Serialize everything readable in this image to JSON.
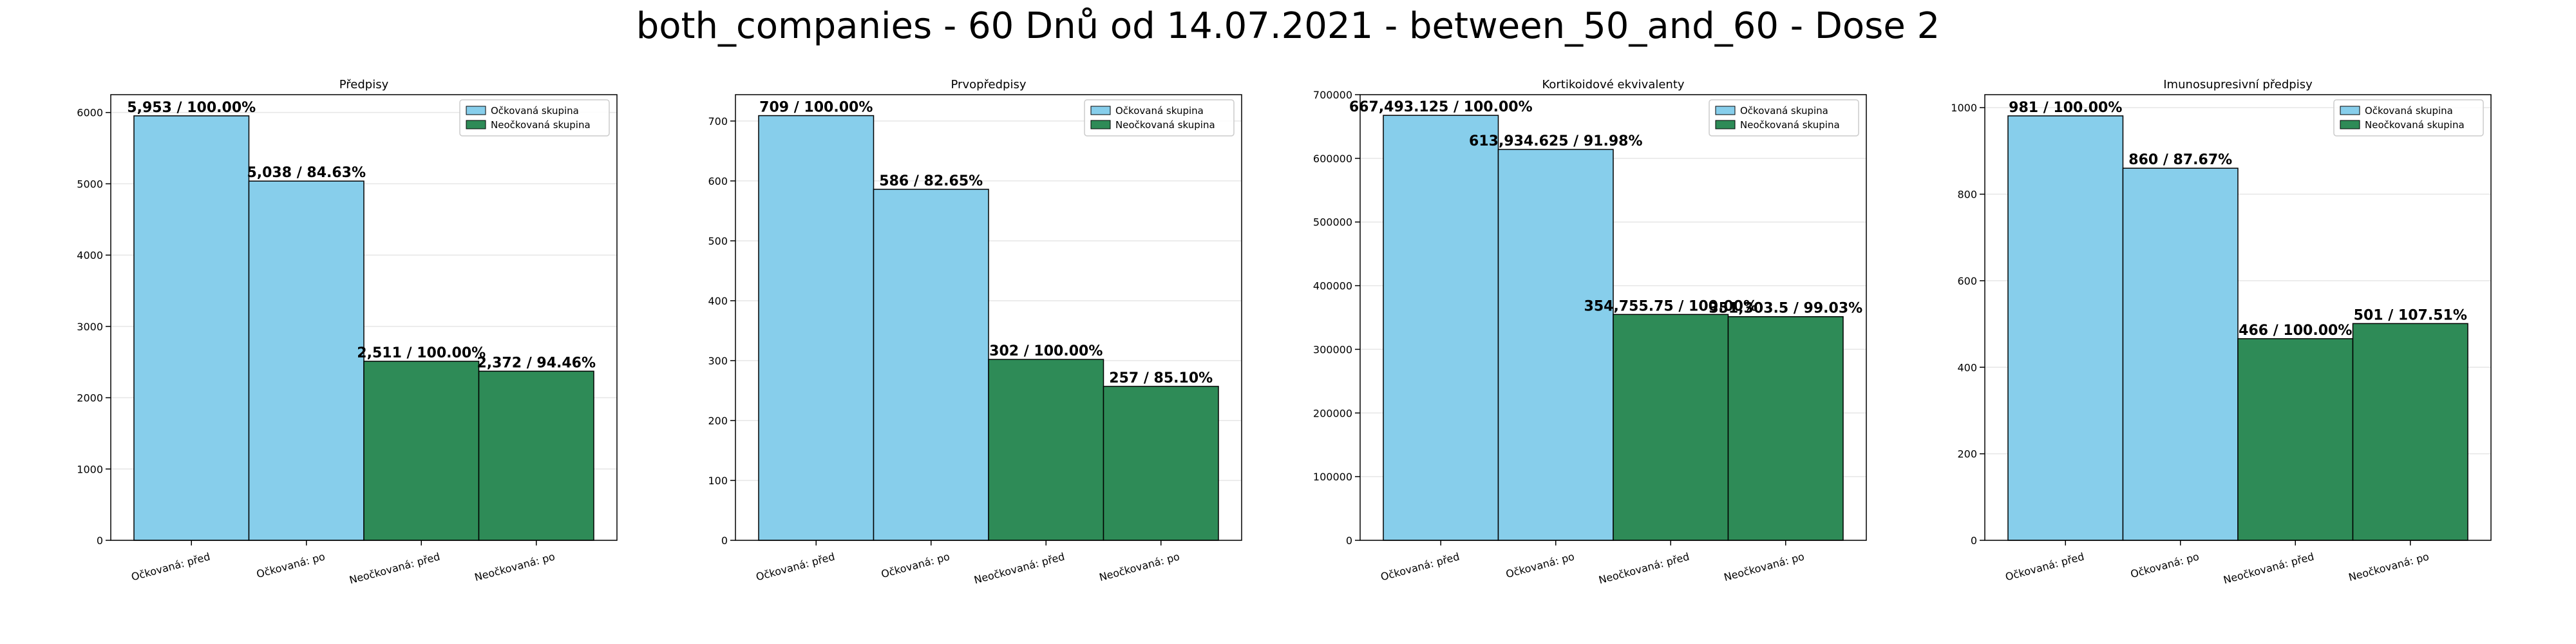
{
  "figure_title": "both_companies - 60 Dnů od 14.07.2021 - between_50_and_60 - Dose 2",
  "colors": {
    "vaccinated": "#87CEEB",
    "unvaccinated": "#2E8B57",
    "edge": "#000000"
  },
  "chart_data": [
    {
      "type": "bar",
      "title": "Předpisy",
      "categories": [
        "Očkovaná: před",
        "Očkovaná: po",
        "Neočkovaná: před",
        "Neočkovaná: po"
      ],
      "values": [
        5953,
        5038,
        2511,
        2372
      ],
      "data_labels": [
        "5,953 / 100.00%",
        "5,038 / 84.63%",
        "2,511 / 100.00%",
        "2,372 / 94.46%"
      ],
      "groups": [
        "vaccinated",
        "vaccinated",
        "unvaccinated",
        "unvaccinated"
      ],
      "legend": [
        "Očkovaná skupina",
        "Neočkovaná skupina"
      ],
      "legend_position": "top-right",
      "yticks": [
        0,
        1000,
        2000,
        3000,
        4000,
        5000,
        6000
      ],
      "ytick_labels": [
        "0",
        "1000",
        "2000",
        "3000",
        "4000",
        "5000",
        "6000"
      ],
      "ylim": [
        0,
        6250
      ],
      "grid": true
    },
    {
      "type": "bar",
      "title": "Prvopředpisy",
      "categories": [
        "Očkovaná: před",
        "Očkovaná: po",
        "Neočkovaná: před",
        "Neočkovaná: po"
      ],
      "values": [
        709,
        586,
        302,
        257
      ],
      "data_labels": [
        "709 / 100.00%",
        "586 / 82.65%",
        "302 / 100.00%",
        "257 / 85.10%"
      ],
      "groups": [
        "vaccinated",
        "vaccinated",
        "unvaccinated",
        "unvaccinated"
      ],
      "legend": [
        "Očkovaná skupina",
        "Neočkovaná skupina"
      ],
      "legend_position": "top-right",
      "yticks": [
        0,
        100,
        200,
        300,
        400,
        500,
        600,
        700
      ],
      "ytick_labels": [
        "0",
        "100",
        "200",
        "300",
        "400",
        "500",
        "600",
        "700"
      ],
      "ylim": [
        0,
        744
      ],
      "grid": true
    },
    {
      "type": "bar",
      "title": "Kortikoidové ekvivalenty",
      "categories": [
        "Očkovaná: před",
        "Očkovaná: po",
        "Neočkovaná: před",
        "Neočkovaná: po"
      ],
      "values": [
        667493.125,
        613934.625,
        354755.75,
        351303.5
      ],
      "data_labels": [
        "667,493.125 / 100.00%",
        "613,934.625 / 91.98%",
        "354,755.75 / 100.00%",
        "351,303.5 / 99.03%"
      ],
      "groups": [
        "vaccinated",
        "vaccinated",
        "unvaccinated",
        "unvaccinated"
      ],
      "legend": [
        "Očkovaná skupina",
        "Neočkovaná skupina"
      ],
      "legend_position": "top-right",
      "yticks": [
        0,
        100000,
        200000,
        300000,
        400000,
        500000,
        600000,
        700000
      ],
      "ytick_labels": [
        "0",
        "100000",
        "200000",
        "300000",
        "400000",
        "500000",
        "600000",
        "700000"
      ],
      "ylim": [
        0,
        700000
      ],
      "grid": true
    },
    {
      "type": "bar",
      "title": "Imunosupresivní předpisy",
      "categories": [
        "Očkovaná: před",
        "Očkovaná: po",
        "Neočkovaná: před",
        "Neočkovaná: po"
      ],
      "values": [
        981,
        860,
        466,
        501
      ],
      "data_labels": [
        "981 / 100.00%",
        "860 / 87.67%",
        "466 / 100.00%",
        "501 / 107.51%"
      ],
      "groups": [
        "vaccinated",
        "vaccinated",
        "unvaccinated",
        "unvaccinated"
      ],
      "legend": [
        "Očkovaná skupina",
        "Neočkovaná skupina"
      ],
      "legend_position": "top-right",
      "yticks": [
        0,
        200,
        400,
        600,
        800,
        1000
      ],
      "ytick_labels": [
        "0",
        "200",
        "400",
        "600",
        "800",
        "1000"
      ],
      "ylim": [
        0,
        1030
      ],
      "grid": true
    }
  ]
}
